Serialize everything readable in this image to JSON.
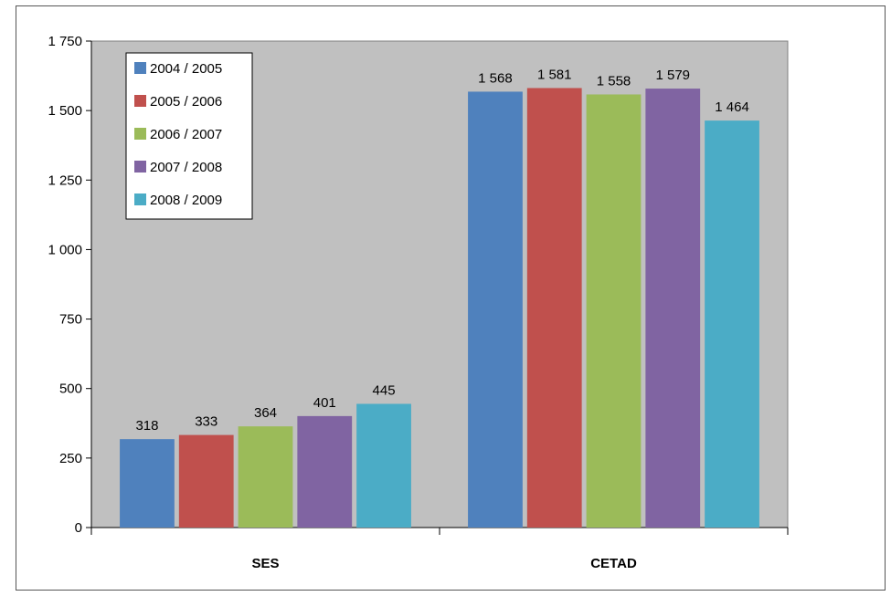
{
  "chart_data": {
    "type": "bar",
    "categories": [
      "SES",
      "CETAD"
    ],
    "series": [
      {
        "name": "2004 / 2005",
        "values": [
          318,
          1568
        ],
        "color": "#4F81BD"
      },
      {
        "name": "2005 / 2006",
        "values": [
          333,
          1581
        ],
        "color": "#C0504D"
      },
      {
        "name": "2006 / 2007",
        "values": [
          364,
          1558
        ],
        "color": "#9BBB59"
      },
      {
        "name": "2007 / 2008",
        "values": [
          401,
          1579
        ],
        "color": "#8064A2"
      },
      {
        "name": "2008 / 2009",
        "values": [
          445,
          1464
        ],
        "color": "#4BACC6"
      }
    ],
    "data_labels": [
      [
        "318",
        "1 568"
      ],
      [
        "333",
        "1 581"
      ],
      [
        "364",
        "1 558"
      ],
      [
        "401",
        "1 579"
      ],
      [
        "445",
        "1 464"
      ]
    ],
    "title": "",
    "xlabel": "",
    "ylabel": "",
    "ylim": [
      0,
      1750
    ],
    "yticks": [
      0,
      250,
      500,
      750,
      1000,
      1250,
      1500,
      1750
    ],
    "ytick_labels": [
      "0",
      "250",
      "500",
      "750",
      "1 000",
      "1 250",
      "1 500",
      "1 750"
    ],
    "grid": false,
    "legend_position": "top-left",
    "plot_background": "#C0C0C0"
  }
}
